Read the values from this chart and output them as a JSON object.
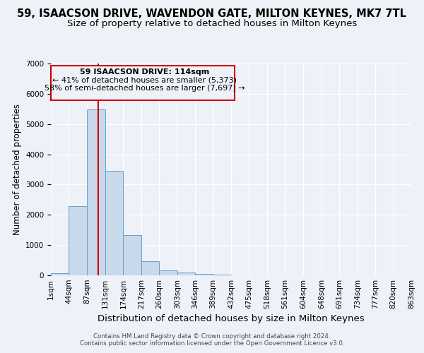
{
  "title": "59, ISAACSON DRIVE, WAVENDON GATE, MILTON KEYNES, MK7 7TL",
  "subtitle": "Size of property relative to detached houses in Milton Keynes",
  "xlabel": "Distribution of detached houses by size in Milton Keynes",
  "ylabel": "Number of detached properties",
  "footer_line1": "Contains HM Land Registry data © Crown copyright and database right 2024.",
  "footer_line2": "Contains public sector information licensed under the Open Government Licence v3.0.",
  "annotation_line1": "59 ISAACSON DRIVE: 114sqm",
  "annotation_line2": "← 41% of detached houses are smaller (5,373)",
  "annotation_line3": "58% of semi-detached houses are larger (7,697) →",
  "bar_color": "#c9d9ec",
  "bar_edge_color": "#6a9ec5",
  "vline_color": "#cc0000",
  "vline_x": 114,
  "bin_edges": [
    1,
    44,
    87,
    131,
    174,
    217,
    260,
    303,
    346,
    389,
    432,
    475,
    518,
    561,
    604,
    648,
    691,
    734,
    777,
    820,
    863
  ],
  "bar_heights": [
    80,
    2280,
    5490,
    3450,
    1320,
    470,
    160,
    90,
    50,
    30,
    0,
    0,
    0,
    0,
    0,
    0,
    0,
    0,
    0,
    0
  ],
  "tick_labels": [
    "1sqm",
    "44sqm",
    "87sqm",
    "131sqm",
    "174sqm",
    "217sqm",
    "260sqm",
    "303sqm",
    "346sqm",
    "389sqm",
    "432sqm",
    "475sqm",
    "518sqm",
    "561sqm",
    "604sqm",
    "648sqm",
    "691sqm",
    "734sqm",
    "777sqm",
    "820sqm",
    "863sqm"
  ],
  "ylim": [
    0,
    7000
  ],
  "yticks": [
    0,
    1000,
    2000,
    3000,
    4000,
    5000,
    6000,
    7000
  ],
  "background_color": "#eef2f8",
  "plot_bg_color": "#eef2f8",
  "grid_color": "#ffffff",
  "title_fontsize": 10.5,
  "subtitle_fontsize": 9.5,
  "xlabel_fontsize": 9.5,
  "ylabel_fontsize": 8.5,
  "tick_fontsize": 7.5
}
